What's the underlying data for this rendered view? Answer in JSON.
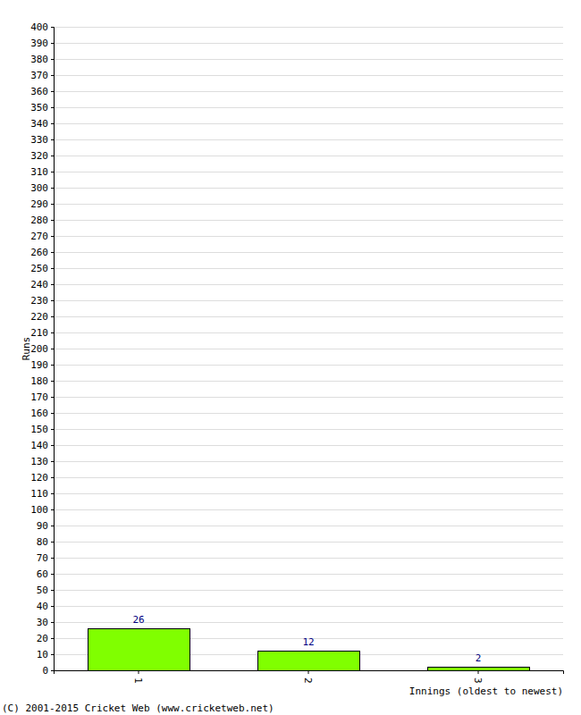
{
  "chart_data": {
    "type": "bar",
    "x_label": "Innings (oldest to newest)",
    "y_label": "Runs",
    "annotations": [
      "(C) 2001-2015 Cricket Web (www.cricketweb.net)"
    ],
    "categories": [
      "1",
      "2",
      "3"
    ],
    "values": [
      26,
      12,
      2
    ],
    "color": "#80ff00",
    "ylim": [
      0,
      400
    ],
    "yticks": [
      0,
      10,
      20,
      30,
      40,
      50,
      60,
      70,
      80,
      90,
      100,
      110,
      120,
      130,
      140,
      150,
      160,
      170,
      180,
      190,
      200,
      210,
      220,
      230,
      240,
      250,
      260,
      270,
      280,
      290,
      300,
      310,
      320,
      330,
      340,
      350,
      360,
      370,
      380,
      390,
      400
    ],
    "grid": true,
    "data_labels": true
  }
}
